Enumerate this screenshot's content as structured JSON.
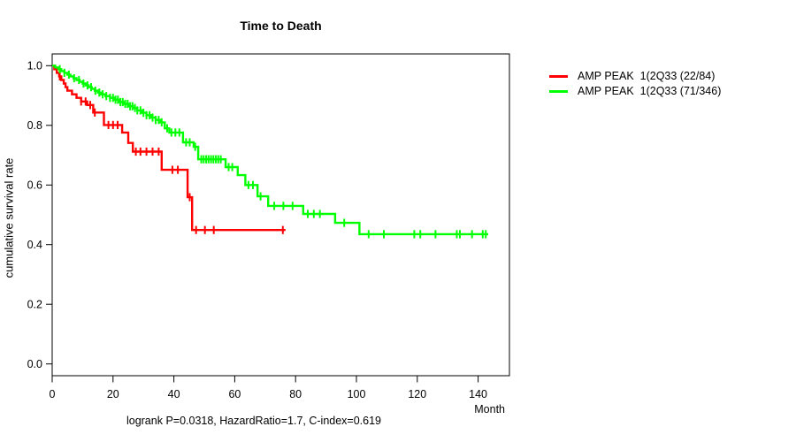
{
  "chart_data": {
    "type": "line",
    "subtype": "kaplan-meier-step-curves",
    "title": "Time to Death",
    "xlabel": "Month",
    "ylabel": "cumulative survival rate",
    "footer": "logrank P=0.0318, HazardRatio=1.7, C-index=0.619",
    "x_ticks": [
      0,
      20,
      40,
      60,
      80,
      100,
      120,
      140
    ],
    "y_ticks": [
      "0.0",
      "0.2",
      "0.4",
      "0.6",
      "0.8",
      "1.0"
    ],
    "xlim": [
      0,
      150
    ],
    "ylim": [
      -0.04,
      1.04
    ],
    "grid": false,
    "legend_position": "right-outside",
    "series": [
      {
        "label": "AMP PEAK  1(2Q33 (22/84)",
        "color": "#ff0000",
        "steps": [
          [
            0,
            1.0
          ],
          [
            0.7,
            0.988
          ],
          [
            1.5,
            0.976
          ],
          [
            2.3,
            0.964
          ],
          [
            3.0,
            0.952
          ],
          [
            3.8,
            0.94
          ],
          [
            4.4,
            0.928
          ],
          [
            5.0,
            0.916
          ],
          [
            6.5,
            0.904
          ],
          [
            8.0,
            0.892
          ],
          [
            9.5,
            0.88
          ],
          [
            11.5,
            0.868
          ],
          [
            13.5,
            0.843
          ],
          [
            17.0,
            0.801
          ],
          [
            23.0,
            0.776
          ],
          [
            25.0,
            0.741
          ],
          [
            26.5,
            0.712
          ],
          [
            36.0,
            0.651
          ],
          [
            44.5,
            0.559
          ],
          [
            46.0,
            0.449
          ]
        ],
        "end_month": 76.7,
        "censor_months": [
          2.5,
          9.5,
          11,
          12.5,
          14,
          18.5,
          20,
          21.5,
          27.5,
          29,
          31,
          33,
          35,
          39.5,
          41.3,
          45.2,
          47.3,
          50.2,
          53.1,
          75.8
        ]
      },
      {
        "label": "AMP PEAK  1(2Q33 (71/346)",
        "color": "#00ff00",
        "steps": [
          [
            0,
            1.0
          ],
          [
            1,
            0.994
          ],
          [
            2,
            0.988
          ],
          [
            3,
            0.982
          ],
          [
            4,
            0.976
          ],
          [
            5,
            0.97
          ],
          [
            6,
            0.964
          ],
          [
            7,
            0.958
          ],
          [
            8,
            0.952
          ],
          [
            9,
            0.946
          ],
          [
            10,
            0.94
          ],
          [
            11,
            0.934
          ],
          [
            12,
            0.928
          ],
          [
            13,
            0.922
          ],
          [
            14,
            0.916
          ],
          [
            15,
            0.91
          ],
          [
            16,
            0.904
          ],
          [
            17.5,
            0.898
          ],
          [
            19,
            0.892
          ],
          [
            20.5,
            0.886
          ],
          [
            22,
            0.878
          ],
          [
            23.5,
            0.872
          ],
          [
            25,
            0.864
          ],
          [
            26.5,
            0.858
          ],
          [
            28,
            0.85
          ],
          [
            29.5,
            0.842
          ],
          [
            31,
            0.834
          ],
          [
            32.5,
            0.826
          ],
          [
            34,
            0.818
          ],
          [
            35.5,
            0.81
          ],
          [
            37,
            0.79
          ],
          [
            38.5,
            0.776
          ],
          [
            43,
            0.743
          ],
          [
            46.5,
            0.728
          ],
          [
            48,
            0.686
          ],
          [
            57,
            0.66
          ],
          [
            61,
            0.633
          ],
          [
            63.5,
            0.6
          ],
          [
            67.5,
            0.562
          ],
          [
            71,
            0.53
          ],
          [
            82.5,
            0.503
          ],
          [
            93,
            0.473
          ],
          [
            101,
            0.435
          ]
        ],
        "end_month": 143.3,
        "censor_months": [
          2.5,
          4,
          5.5,
          7.2,
          8.8,
          10.3,
          11.6,
          12.8,
          14.2,
          15.5,
          16.6,
          17.8,
          19,
          20,
          20.8,
          21.6,
          22.4,
          23.2,
          24,
          24.8,
          25.6,
          26.4,
          27.2,
          28,
          29,
          30,
          31,
          32,
          33,
          34,
          35,
          36,
          37.8,
          39.2,
          40.5,
          41.8,
          44,
          45.2,
          47,
          49,
          49.8,
          50.6,
          51.4,
          52.2,
          53,
          53.8,
          54.6,
          55.4,
          58,
          59.2,
          64.5,
          66,
          68.5,
          73,
          76,
          79,
          84,
          86,
          88,
          96,
          104,
          109,
          119,
          121,
          126,
          133,
          134,
          138,
          141.5,
          142.5
        ]
      }
    ]
  }
}
